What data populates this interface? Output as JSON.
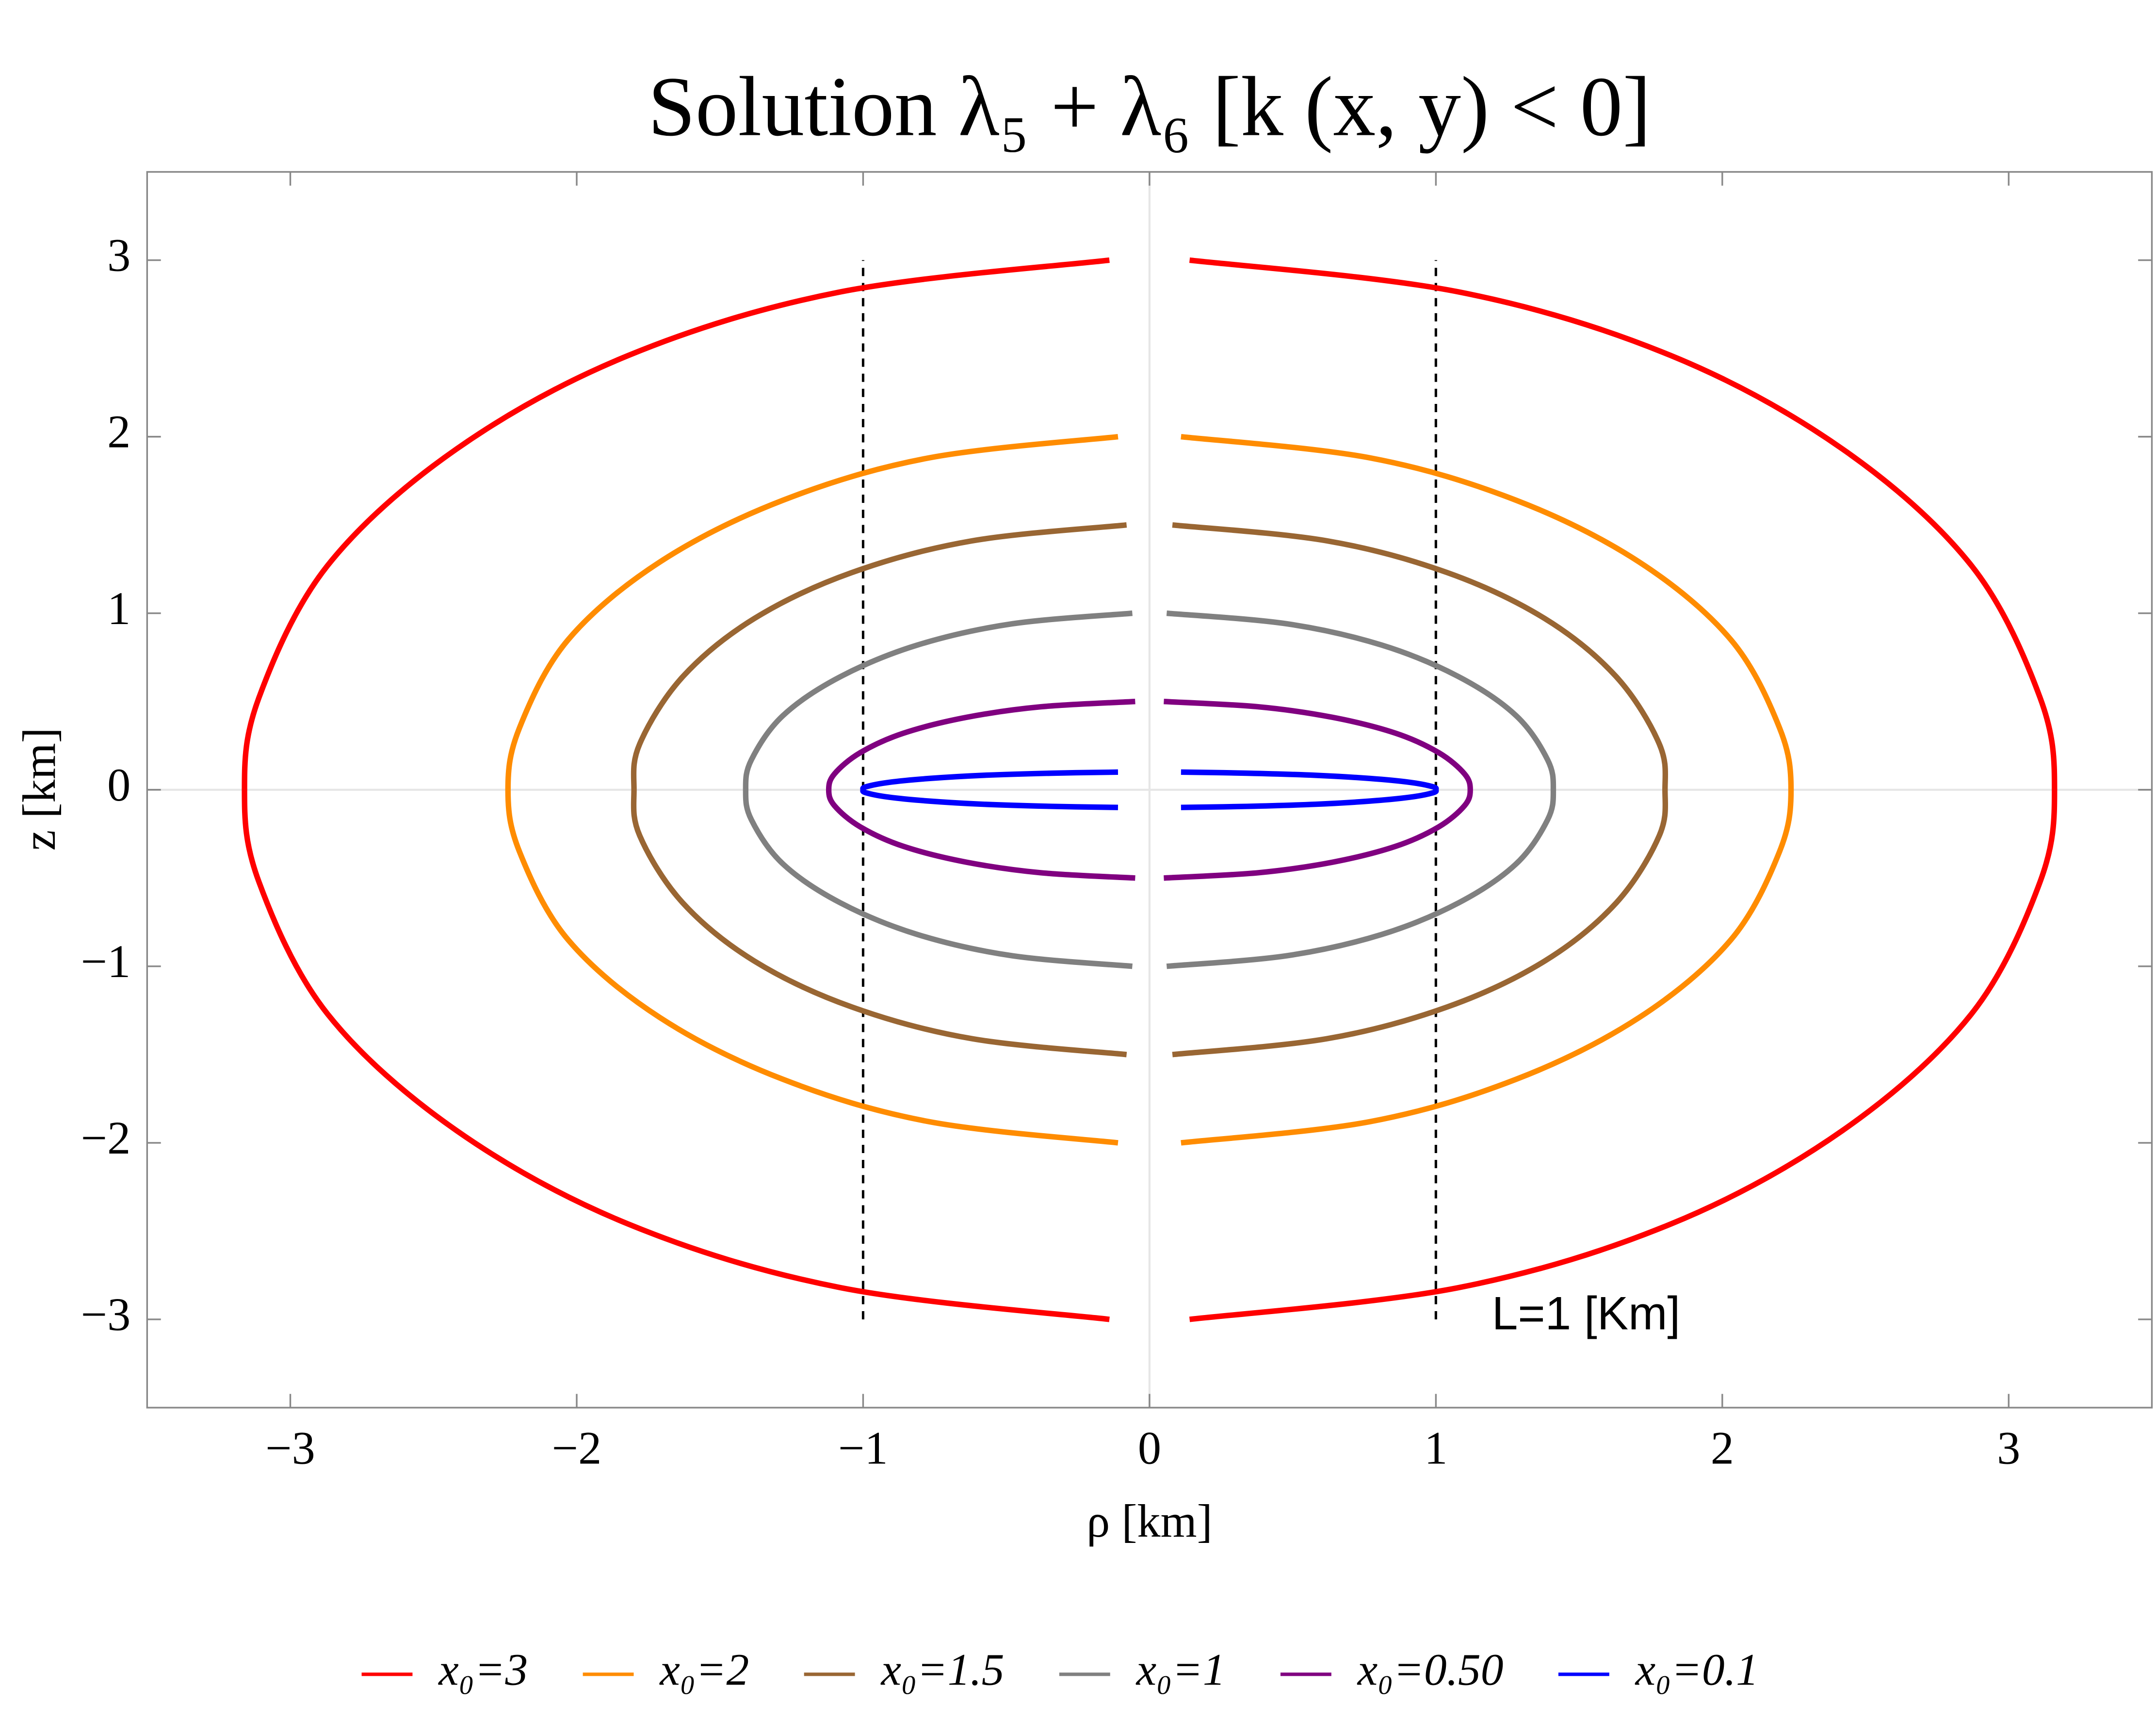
{
  "chart_data": {
    "type": "line",
    "title": "Solution λ₅ + λ₆  [k (x, y) < 0]",
    "x_label": "ρ [km]",
    "y_label": "z [km]",
    "annotation": "L=1 [Km]",
    "xlim": [
      -3.5,
      3.5
    ],
    "ylim": [
      -3.5,
      3.5
    ],
    "xticks": [
      {
        "value": -3,
        "label": "−3"
      },
      {
        "value": -2,
        "label": "−2"
      },
      {
        "value": -1,
        "label": "−1"
      },
      0,
      1,
      2,
      3
    ],
    "yticks": [
      {
        "value": -3,
        "label": "−3"
      },
      {
        "value": -2,
        "label": "−2"
      },
      {
        "value": -1,
        "label": "−1"
      },
      0,
      1,
      2,
      3
    ],
    "vlines": [
      -1,
      1
    ],
    "vline_range": [
      -3,
      3
    ],
    "series": [
      {
        "name": "x₀=3",
        "color": "#ff0000",
        "x": [
          0.14,
          1.08,
          1.82,
          2.42,
          2.87,
          3.11,
          3.16,
          3.11,
          2.87,
          2.42,
          1.82,
          1.08,
          0.14,
          null,
          -0.14,
          -1.08,
          -1.82,
          -2.42,
          -2.87,
          -3.11,
          -3.16,
          -3.11,
          -2.87,
          -2.42,
          -1.82,
          -1.08,
          -0.14
        ],
        "values": [
          3,
          2.82,
          2.46,
          1.93,
          1.27,
          0.52,
          0,
          -0.52,
          -1.27,
          -1.93,
          -2.46,
          -2.82,
          -3,
          null,
          3,
          2.82,
          2.46,
          1.93,
          1.27,
          0.52,
          0,
          -0.52,
          -1.27,
          -1.93,
          -2.46,
          -2.82,
          -3
        ]
      },
      {
        "name": "x₀=2",
        "color": "#ff8c00",
        "x": [
          0.11,
          0.77,
          1.28,
          1.71,
          2.03,
          2.2,
          2.24,
          2.2,
          2.03,
          1.71,
          1.28,
          0.77,
          0.11,
          null,
          -0.11,
          -0.77,
          -1.28,
          -1.71,
          -2.03,
          -2.2,
          -2.24,
          -2.2,
          -2.03,
          -1.71,
          -1.28,
          -0.77,
          -0.11
        ],
        "values": [
          2,
          1.88,
          1.64,
          1.29,
          0.85,
          0.35,
          0,
          -0.35,
          -0.85,
          -1.29,
          -1.64,
          -1.88,
          -2,
          null,
          2,
          1.88,
          1.64,
          1.29,
          0.85,
          0.35,
          0,
          -0.35,
          -0.85,
          -1.29,
          -1.64,
          -1.88,
          -2
        ]
      },
      {
        "name": "x₀=1.5",
        "color": "#996633",
        "x": [
          0.08,
          0.62,
          1.04,
          1.38,
          1.63,
          1.78,
          1.8,
          1.78,
          1.63,
          1.38,
          1.04,
          0.62,
          0.08,
          null,
          -0.08,
          -0.62,
          -1.04,
          -1.38,
          -1.63,
          -1.78,
          -1.8,
          -1.78,
          -1.63,
          -1.38,
          -1.04,
          -0.62,
          -0.08
        ],
        "values": [
          1.5,
          1.41,
          1.23,
          0.97,
          0.64,
          0.26,
          0,
          -0.26,
          -0.64,
          -0.97,
          -1.23,
          -1.41,
          -1.5,
          null,
          1.5,
          1.41,
          1.23,
          0.97,
          0.64,
          0.26,
          0,
          -0.26,
          -0.64,
          -0.97,
          -1.23,
          -1.41,
          -1.5
        ]
      },
      {
        "name": "x₀=1",
        "color": "#808080",
        "x": [
          0.06,
          0.48,
          0.81,
          1.08,
          1.28,
          1.39,
          1.41,
          1.39,
          1.28,
          1.08,
          0.81,
          0.48,
          0.06,
          null,
          -0.06,
          -0.48,
          -0.81,
          -1.08,
          -1.28,
          -1.39,
          -1.41,
          -1.39,
          -1.28,
          -1.08,
          -0.81,
          -0.48,
          -0.06
        ],
        "values": [
          1,
          0.94,
          0.82,
          0.64,
          0.42,
          0.17,
          0,
          -0.17,
          -0.42,
          -0.64,
          -0.82,
          -0.94,
          -1,
          null,
          1,
          0.94,
          0.82,
          0.64,
          0.42,
          0.17,
          0,
          -0.17,
          -0.42,
          -0.64,
          -0.82,
          -0.94,
          -1
        ]
      },
      {
        "name": "x₀=0.50",
        "color": "#800080",
        "x": [
          0.05,
          0.38,
          0.64,
          0.86,
          1.01,
          1.1,
          1.12,
          1.1,
          1.01,
          0.86,
          0.64,
          0.38,
          0.05,
          null,
          -0.05,
          -0.38,
          -0.64,
          -0.86,
          -1.01,
          -1.1,
          -1.12,
          -1.1,
          -1.01,
          -0.86,
          -0.64,
          -0.38,
          -0.05
        ],
        "values": [
          0.5,
          0.47,
          0.41,
          0.32,
          0.21,
          0.09,
          0,
          -0.09,
          -0.21,
          -0.32,
          -0.41,
          -0.47,
          -0.5,
          null,
          0.5,
          0.47,
          0.41,
          0.32,
          0.21,
          0.09,
          0,
          -0.09,
          -0.21,
          -0.32,
          -0.41,
          -0.47,
          -0.5
        ]
      },
      {
        "name": "x₀=0.1",
        "color": "#0000ff",
        "x": [
          0.11,
          0.34,
          0.58,
          0.77,
          0.91,
          0.99,
          1.0,
          0.99,
          0.91,
          0.77,
          0.58,
          0.34,
          0.11,
          null,
          -0.11,
          -0.34,
          -0.58,
          -0.77,
          -0.91,
          -0.99,
          -1.0,
          -0.99,
          -0.91,
          -0.77,
          -0.58,
          -0.34,
          -0.11
        ],
        "values": [
          0.1,
          0.094,
          0.082,
          0.064,
          0.042,
          0.017,
          0,
          -0.017,
          -0.042,
          -0.064,
          -0.082,
          -0.094,
          -0.1,
          null,
          0.1,
          0.094,
          0.082,
          0.064,
          0.042,
          0.017,
          0,
          -0.017,
          -0.042,
          -0.064,
          -0.082,
          -0.094,
          -0.1
        ]
      }
    ]
  }
}
